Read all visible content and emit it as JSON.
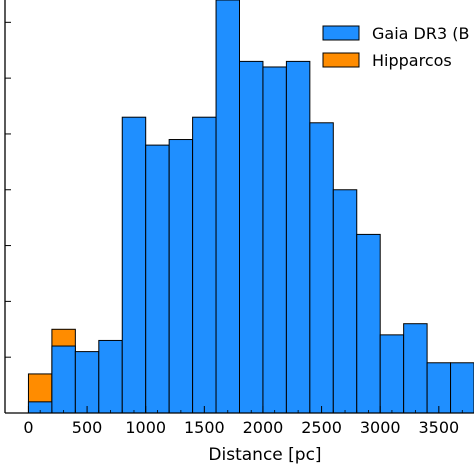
{
  "chart_data": {
    "type": "bar",
    "xlabel": "Distance [pc]",
    "ylabel": "",
    "xlim": [
      -200,
      3800
    ],
    "ylim": [
      0,
      37
    ],
    "x_ticks": [
      0,
      500,
      1000,
      1500,
      2000,
      2500,
      3000,
      3500
    ],
    "bin_width": 200,
    "series": [
      {
        "name": "Gaia DR3 (B",
        "color": "#1f8fff",
        "bins": [
          {
            "x0": 0,
            "x1": 200,
            "value": 1
          },
          {
            "x0": 200,
            "x1": 400,
            "value": 6
          },
          {
            "x0": 400,
            "x1": 600,
            "value": 5.5
          },
          {
            "x0": 600,
            "x1": 800,
            "value": 6.5
          },
          {
            "x0": 800,
            "x1": 1000,
            "value": 26.5
          },
          {
            "x0": 1000,
            "x1": 1200,
            "value": 24
          },
          {
            "x0": 1200,
            "x1": 1400,
            "value": 24.5
          },
          {
            "x0": 1400,
            "x1": 1600,
            "value": 26.5
          },
          {
            "x0": 1600,
            "x1": 1800,
            "value": 37.5
          },
          {
            "x0": 1800,
            "x1": 2000,
            "value": 31.5
          },
          {
            "x0": 2000,
            "x1": 2200,
            "value": 31
          },
          {
            "x0": 2200,
            "x1": 2400,
            "value": 31.5
          },
          {
            "x0": 2400,
            "x1": 2600,
            "value": 26
          },
          {
            "x0": 2600,
            "x1": 2800,
            "value": 20
          },
          {
            "x0": 2800,
            "x1": 3000,
            "value": 16
          },
          {
            "x0": 3000,
            "x1": 3200,
            "value": 7
          },
          {
            "x0": 3200,
            "x1": 3400,
            "value": 8
          },
          {
            "x0": 3400,
            "x1": 3600,
            "value": 4.5
          },
          {
            "x0": 3600,
            "x1": 3800,
            "value": 4.5
          }
        ]
      },
      {
        "name": "Hipparcos",
        "color": "#ff8c00",
        "bins": [
          {
            "x0": 0,
            "x1": 200,
            "value": 3.5
          },
          {
            "x0": 200,
            "x1": 400,
            "value": 7.5
          }
        ]
      }
    ],
    "legend_position": "top-right",
    "grid": false
  }
}
